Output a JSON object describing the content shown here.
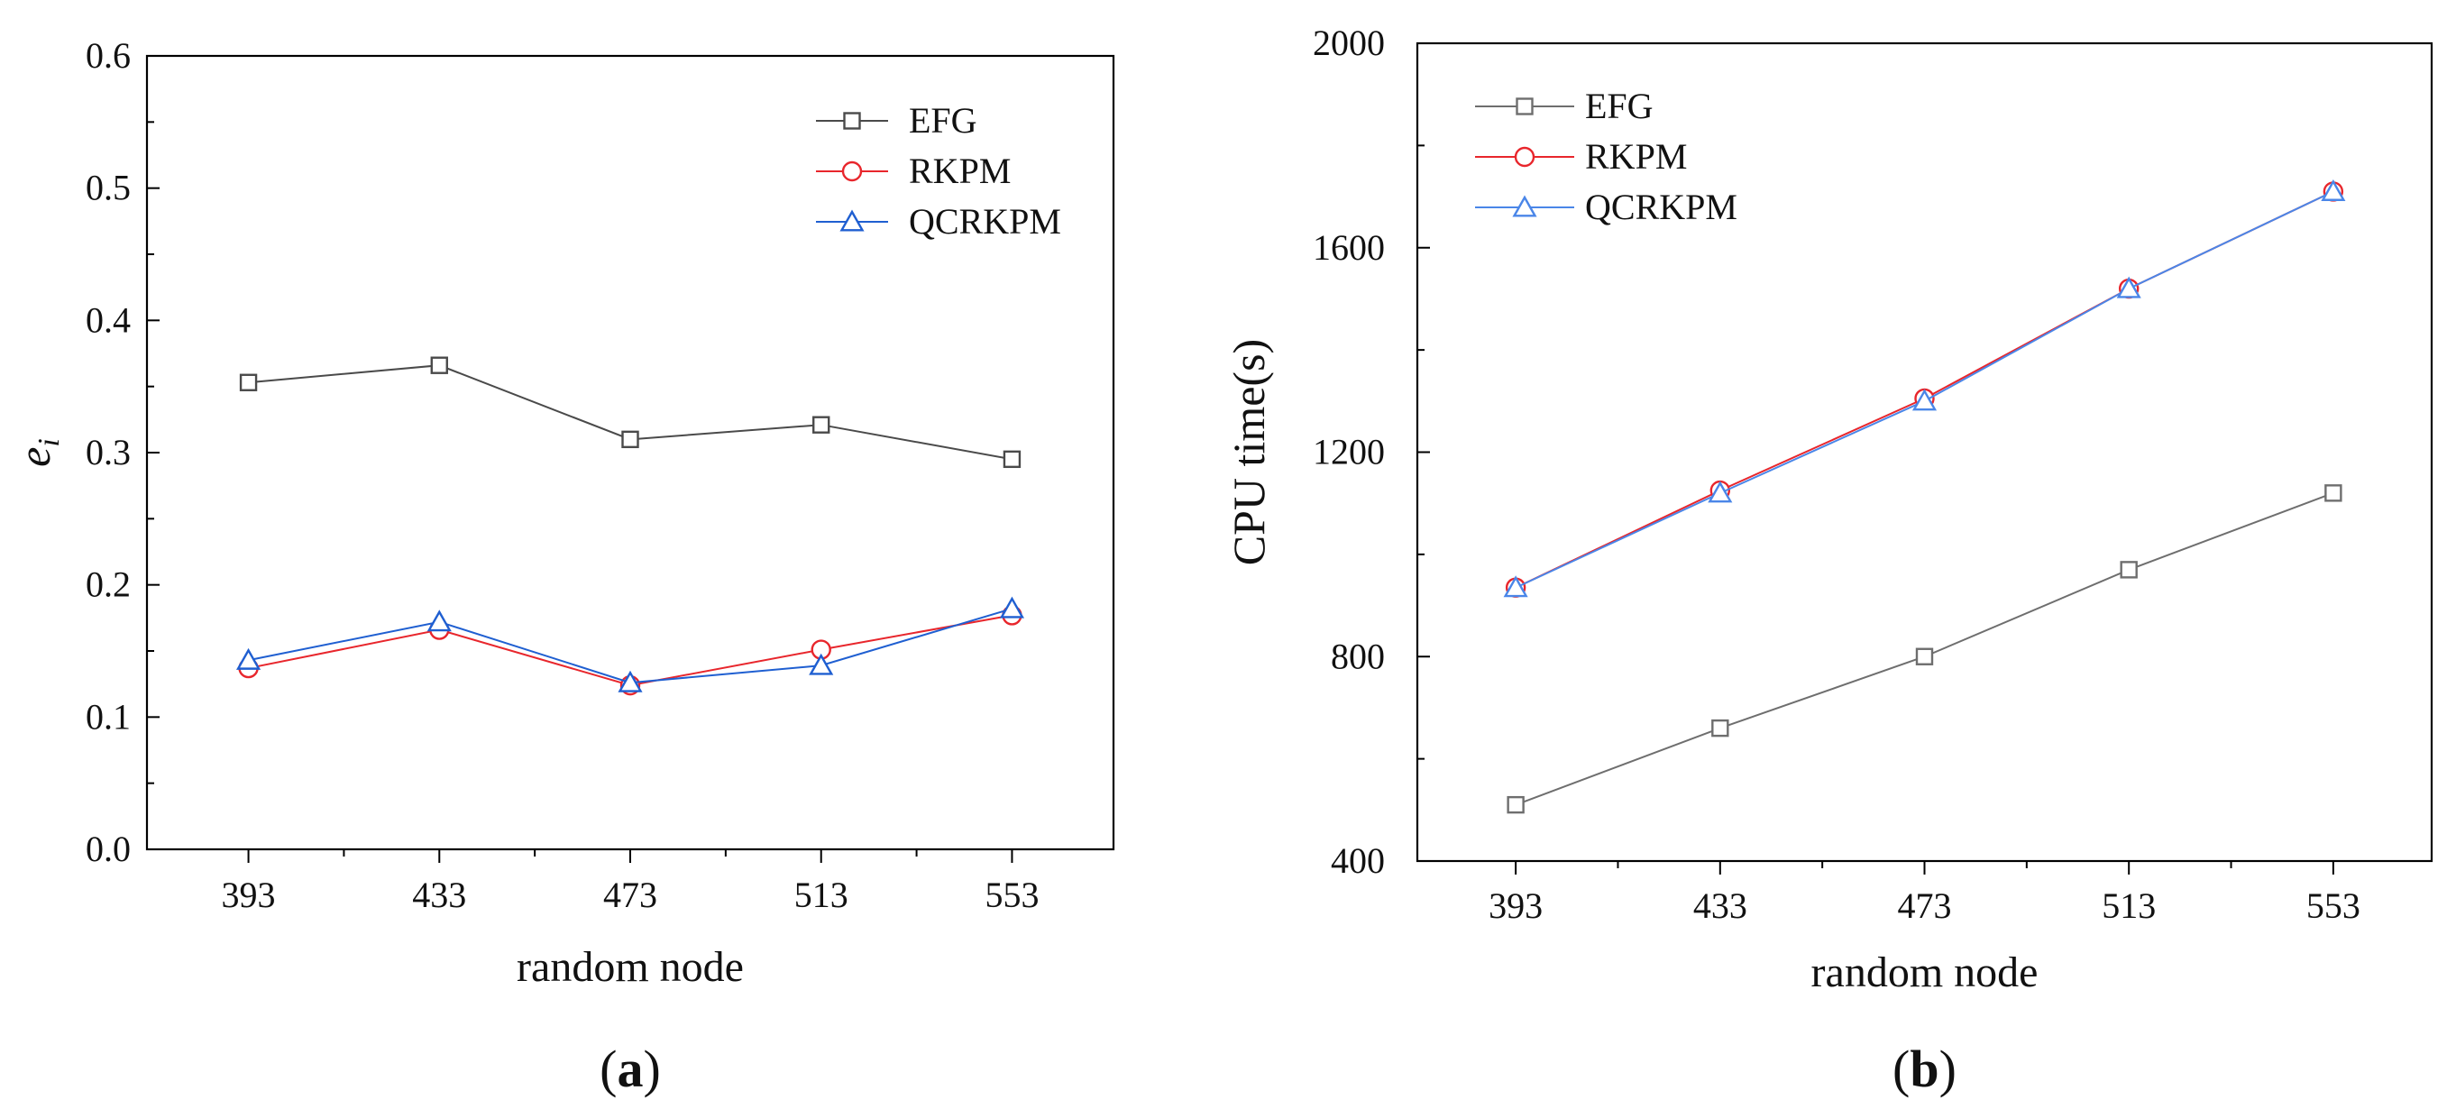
{
  "panels": [
    {
      "caption": "a",
      "chart_data": {
        "type": "line",
        "categories": [
          "393",
          "433",
          "473",
          "513",
          "553"
        ],
        "xlabel": "random node",
        "ylabel": "e",
        "ylabel_subscript": "i",
        "ylim": [
          0.0,
          0.6
        ],
        "yticks": [
          "0.0",
          "0.1",
          "0.2",
          "0.3",
          "0.4",
          "0.5",
          "0.6"
        ],
        "legend_position": "top-right",
        "series": [
          {
            "name": "EFG",
            "marker": "square",
            "color": "#4a4a4a",
            "values": [
              0.353,
              0.366,
              0.31,
              0.321,
              0.295
            ]
          },
          {
            "name": "RKPM",
            "marker": "circle",
            "color": "#e8262c",
            "values": [
              0.137,
              0.166,
              0.124,
              0.151,
              0.177
            ]
          },
          {
            "name": "QCRKPM",
            "marker": "triangle",
            "color": "#1f5fd1",
            "values": [
              0.143,
              0.172,
              0.126,
              0.139,
              0.182
            ]
          }
        ]
      }
    },
    {
      "caption": "b",
      "chart_data": {
        "type": "line",
        "categories": [
          "393",
          "433",
          "473",
          "513",
          "553"
        ],
        "xlabel": "random node",
        "ylabel": "CPU time(s)",
        "ylim": [
          400,
          2000
        ],
        "yticks": [
          "400",
          "800",
          "1200",
          "1600",
          "2000"
        ],
        "legend_position": "top-left",
        "series": [
          {
            "name": "EFG",
            "marker": "square",
            "color": "#6e6e6e",
            "values": [
              510,
              660,
              800,
              970,
              1120
            ]
          },
          {
            "name": "RKPM",
            "marker": "circle",
            "color": "#e8262c",
            "values": [
              935,
              1125,
              1305,
              1520,
              1710
            ]
          },
          {
            "name": "QCRKPM",
            "marker": "triangle",
            "color": "#4a86e8",
            "values": [
              935,
              1120,
              1300,
              1520,
              1710
            ]
          }
        ]
      }
    }
  ]
}
